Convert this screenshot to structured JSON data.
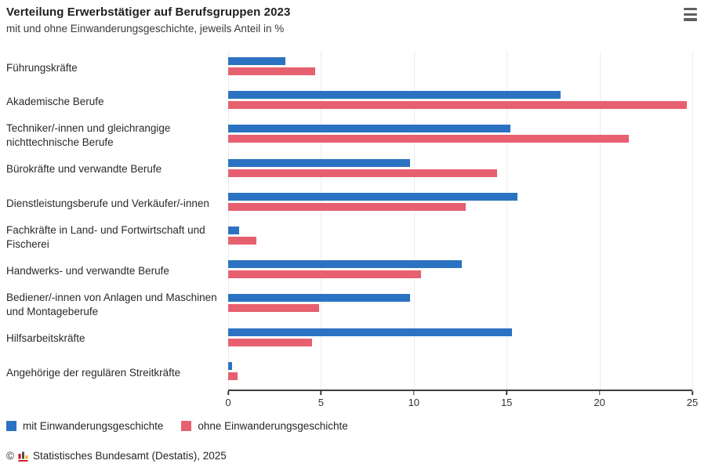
{
  "header": {
    "menu_icon": "hamburger"
  },
  "chart_data": {
    "type": "bar",
    "orientation": "horizontal",
    "title": "Verteilung Erwerbstätiger auf Berufsgruppen 2023",
    "subtitle": "mit und ohne Einwanderungsgeschichte, jeweils Anteil in %",
    "xlabel": "",
    "ylabel": "",
    "xlim": [
      0,
      25
    ],
    "xticks": [
      0,
      5,
      10,
      15,
      20,
      25
    ],
    "grid": true,
    "legend_position": "bottom",
    "categories": [
      "Führungskräfte",
      "Akademische Berufe",
      "Techniker/-innen und gleichrangige nichttechnische Berufe",
      "Bürokräfte und verwandte Berufe",
      "Dienstleistungsberufe und Verkäufer/-innen",
      "Fachkräfte in Land- und Fortwirtschaft und Fischerei",
      "Handwerks- und verwandte Berufe",
      "Bediener/-innen von Anlagen und Maschinen und Montageberufe",
      "Hilfsarbeitskräfte",
      "Angehörige der regulären Streitkräfte"
    ],
    "series": [
      {
        "name": "mit Einwanderungsgeschichte",
        "color": "#2b72c2",
        "values": [
          3.1,
          17.9,
          15.2,
          9.8,
          15.6,
          0.6,
          12.6,
          9.8,
          15.3,
          0.2
        ]
      },
      {
        "name": "ohne Einwanderungsgeschichte",
        "color": "#e7606f",
        "values": [
          4.7,
          24.7,
          21.6,
          14.5,
          12.8,
          1.5,
          10.4,
          4.9,
          4.5,
          0.5
        ]
      }
    ]
  },
  "footer": {
    "copyright_symbol": "©",
    "source": "Statistisches Bundesamt (Destatis), 2025"
  },
  "colors": {
    "axis": "#3c3c3c",
    "gridline": "#ececec",
    "logo_red": "#cc0a12",
    "logo_dark": "#4d4d4d",
    "logo_gold": "#f0b400"
  }
}
